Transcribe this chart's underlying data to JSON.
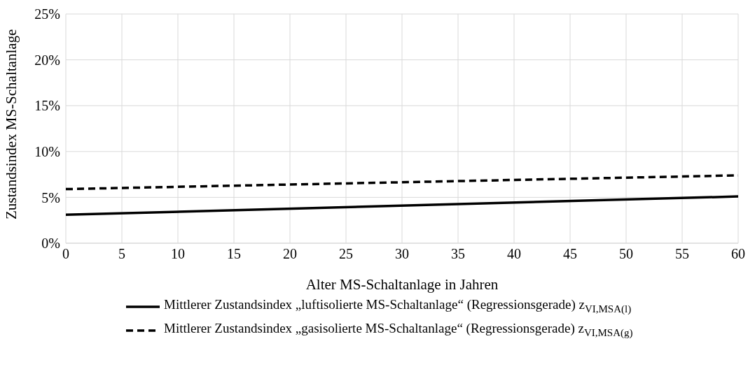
{
  "chart_data": {
    "type": "line",
    "xlabel": "Alter MS-Schaltanlage in Jahren",
    "ylabel": "Zustandsindex MS-Schaltanlage",
    "x": [
      0,
      60
    ],
    "series": [
      {
        "name": "Mittlerer Zustandsindex „luftisolierte MS-Schaltanlage“ (Regressionsgerade) z$_{VI,MSA(l)}$",
        "color": "#000000",
        "line_style": "solid",
        "values": [
          3.1,
          5.1
        ]
      },
      {
        "name": "Mittlerer Zustandsindex „gasisolierte MS-Schaltanlage“ (Regressionsgerade) z$_{VI,MSA(g)}$",
        "color": "#000000",
        "line_style": "dashed",
        "values": [
          5.9,
          7.4
        ]
      }
    ],
    "xlim": [
      0,
      60
    ],
    "xticks": [
      0,
      5,
      10,
      15,
      20,
      25,
      30,
      35,
      40,
      45,
      50,
      55,
      60
    ],
    "ylim": [
      0,
      25
    ],
    "yticks": [
      {
        "value": 0,
        "label": "0%"
      },
      {
        "value": 5,
        "label": "5%"
      },
      {
        "value": 10,
        "label": "10%"
      },
      {
        "value": 15,
        "label": "15%"
      },
      {
        "value": 20,
        "label": "20%"
      },
      {
        "value": 25,
        "label": "25%"
      }
    ],
    "grid": true,
    "legend": "bottom",
    "marker": "none"
  }
}
